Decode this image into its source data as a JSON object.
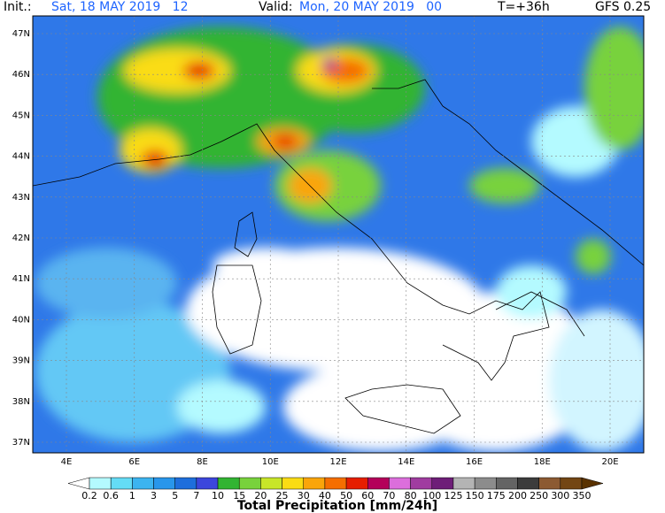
{
  "header": {
    "init_label": "Init.:",
    "init_value": "Sat, 18 MAY 2019   12",
    "valid_label": "Valid:",
    "valid_value": "Mon, 20 MAY 2019   00",
    "lead": "T=+36h",
    "model": "GFS 0.25"
  },
  "map": {
    "lat_labels": [
      "47N",
      "46N",
      "45N",
      "44N",
      "43N",
      "42N",
      "41N",
      "40N",
      "39N",
      "38N",
      "37N"
    ],
    "lon_labels": [
      "4E",
      "6E",
      "8E",
      "10E",
      "12E",
      "14E",
      "16E",
      "18E",
      "20E"
    ]
  },
  "legend": {
    "title": "Total Precipitation [mm/24h]",
    "labels": [
      "0.2",
      "0.6",
      "1",
      "3",
      "5",
      "7",
      "10",
      "15",
      "20",
      "25",
      "30",
      "40",
      "50",
      "60",
      "70",
      "80",
      "100",
      "125",
      "150",
      "175",
      "200",
      "250",
      "300",
      "350"
    ],
    "colors": [
      "#ffffff",
      "#b4faff",
      "#64dcf5",
      "#3cb4f0",
      "#2896eb",
      "#1e6edc",
      "#3c46dc",
      "#32b432",
      "#78d23c",
      "#c8e628",
      "#fadc14",
      "#faa50a",
      "#f56e00",
      "#e61e00",
      "#b4005a",
      "#dc6edc",
      "#a03ca0",
      "#6e1e78",
      "#b4b4b4",
      "#8c8c8c",
      "#646464",
      "#3c3c3c",
      "#8c5a32",
      "#734614",
      "#5a3200"
    ]
  }
}
